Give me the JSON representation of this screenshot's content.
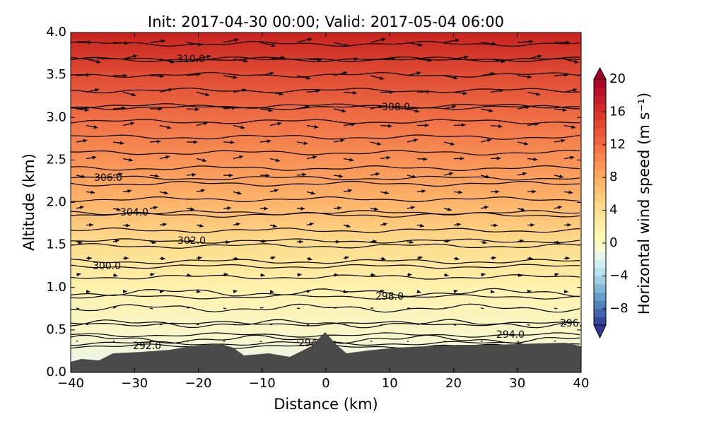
{
  "chart_data": {
    "type": "contourf",
    "title": "Init: 2017-04-30 00:00; Valid: 2017-05-04 06:00",
    "xlabel": "Distance (km)",
    "ylabel": "Altitude (km)",
    "xlim": [
      -40,
      40
    ],
    "ylim": [
      0,
      4
    ],
    "xticks": [
      {
        "value": -40,
        "label": "−40"
      },
      {
        "value": -30,
        "label": "−30"
      },
      {
        "value": -20,
        "label": "−20"
      },
      {
        "value": -10,
        "label": "−10"
      },
      0,
      10,
      20,
      30,
      40
    ],
    "yticks": [
      {
        "value": 0,
        "label": "0.0"
      },
      0.5,
      {
        "value": 1,
        "label": "1.0"
      },
      1.5,
      {
        "value": 2,
        "label": "2.0"
      },
      2.5,
      {
        "value": 3,
        "label": "3.0"
      },
      3.5,
      {
        "value": 4,
        "label": "4.0"
      }
    ],
    "colorbar": {
      "label": "Horizontal wind speed (m s⁻¹)",
      "clim": [
        -10,
        20
      ],
      "ticks": [
        {
          "value": -8,
          "label": "−8"
        },
        {
          "value": -4,
          "label": "−4"
        },
        0,
        4,
        8,
        12,
        16,
        20
      ],
      "colormap": "RdYlBu_r",
      "extend": "both"
    },
    "contour_labels": [
      {
        "value": 310,
        "label": "310.0"
      },
      {
        "value": 308,
        "label": "308.0"
      },
      {
        "value": 306,
        "label": "306.0"
      },
      {
        "value": 304,
        "label": "304.0"
      },
      {
        "value": 302,
        "label": "302.0"
      },
      {
        "value": 300,
        "label": "300.0"
      },
      {
        "value": 298,
        "label": "298.0"
      },
      {
        "value": 296,
        "label": "296.0"
      },
      {
        "value": 294,
        "label": "294.0"
      },
      {
        "value": 294,
        "label": "294.0"
      },
      {
        "value": 292,
        "label": "292.0"
      }
    ]
  }
}
